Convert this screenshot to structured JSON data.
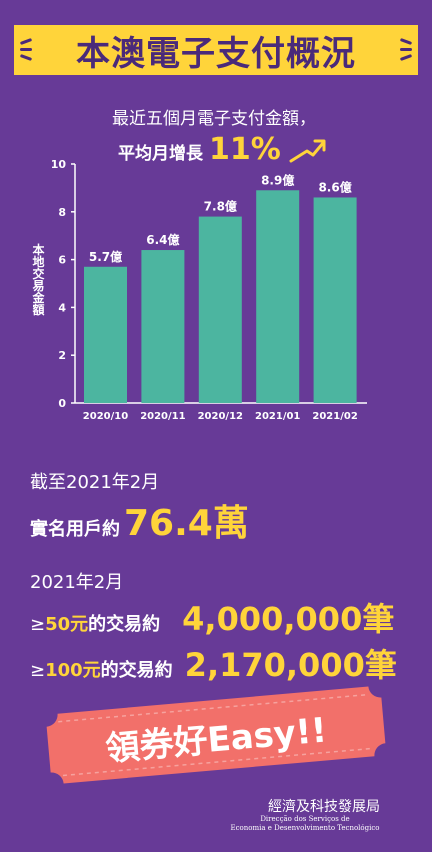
{
  "header": {
    "title": "本澳電子支付概況"
  },
  "summary": {
    "line1": "最近五個月電子支付金額，",
    "line2_label": "平均月增長",
    "line2_value": "11%"
  },
  "chart_data": {
    "type": "bar",
    "categories": [
      "2020/10",
      "2020/11",
      "2020/12",
      "2021/01",
      "2021/02"
    ],
    "values": [
      5.7,
      6.4,
      7.8,
      8.9,
      8.6
    ],
    "data_labels": [
      "5.7億",
      "6.4億",
      "7.8億",
      "8.9億",
      "8.6億"
    ],
    "ylabel": "本地交易金額",
    "yticks": [
      "0",
      "2",
      "4",
      "6",
      "8",
      "10"
    ],
    "ylim": [
      0,
      10
    ],
    "bar_color": "#4cb5a0",
    "grid": false
  },
  "users": {
    "label1": "截至2021年2月",
    "label2": "實名用戶約",
    "value": "76.4萬"
  },
  "transactions": {
    "period": "2021年2月",
    "rows": [
      {
        "prefix": "≥",
        "amount": "50元",
        "label": "的交易約",
        "value": "4,000,000筆"
      },
      {
        "prefix": "≥",
        "amount": "100元",
        "label": "的交易約",
        "value": "2,170,000筆"
      }
    ]
  },
  "ticket": {
    "text": "領券好Easy!!",
    "color": "#f2706a"
  },
  "footer": {
    "org_cn": "經濟及科技發展局",
    "org_pt_line1": "Direcção dos Serviços de",
    "org_pt_line2": "Economia e Desenvolvimento Tecnológico"
  },
  "colors": {
    "background": "#673a97",
    "accent": "#ffd43a",
    "bar": "#4cb5a0",
    "ticket": "#f2706a"
  }
}
